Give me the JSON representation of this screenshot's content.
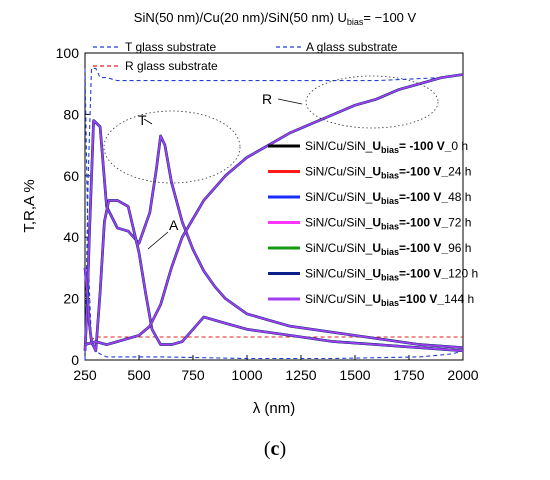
{
  "chart_data": {
    "type": "line",
    "title_main": "SiN(50 nm)/Cu(20 nm)/SiN(50 nm) U",
    "title_sub": "bias",
    "title_tail": "= −100 V",
    "xlabel": "λ (nm)",
    "ylabel": "T,R,A %",
    "xlim": [
      250,
      2000
    ],
    "ylim": [
      0,
      100
    ],
    "xticks": [
      "250",
      "500",
      "750",
      "1000",
      "1250",
      "1500",
      "1750",
      "2000"
    ],
    "yticks": [
      "0",
      "20",
      "40",
      "60",
      "80",
      "100"
    ],
    "grid": false,
    "substrate_legend": [
      {
        "label": "T glass substrate",
        "color": "#1f3fd6",
        "dash": "dashed"
      },
      {
        "label": "A glass substrate",
        "color": "#1f3fd6",
        "dash": "dashed"
      },
      {
        "label": "R glass substrate",
        "color": "#e02020",
        "dash": "dashed"
      }
    ],
    "sample_legend": [
      {
        "prefix": "SiN/Cu/SiN_",
        "sub": "bias",
        "mid": "= -100 V_",
        "suffix": "0 h",
        "color": "#000000"
      },
      {
        "prefix": "SiN/Cu/SiN_",
        "sub": "bias",
        "mid": "=-100 V_",
        "suffix": "24 h",
        "color": "#ff1a1a"
      },
      {
        "prefix": "SiN/Cu/SiN_",
        "sub": "bias",
        "mid": "=-100 V_",
        "suffix": "48 h",
        "color": "#1a2cff"
      },
      {
        "prefix": "SiN/Cu/SiN_",
        "sub": "bias",
        "mid": "=-100 V_",
        "suffix": "72 h",
        "color": "#ff33ff"
      },
      {
        "prefix": "SiN/Cu/SiN_",
        "sub": "bias",
        "mid": "=-100 V_",
        "suffix": "96 h",
        "color": "#169a16"
      },
      {
        "prefix": "SiN/Cu/SiN_",
        "sub": "bias",
        "mid": "=-100 V_",
        "suffix": "120 h",
        "color": "#0d1f8a"
      },
      {
        "prefix": "SiN/Cu/SiN_",
        "sub": "bias",
        "mid": "=100 V_",
        "suffix": "144 h",
        "color": "#a040f0"
      }
    ],
    "legend_u": "U",
    "annotations": [
      {
        "text": "T"
      },
      {
        "text": "A"
      },
      {
        "text": "R"
      }
    ],
    "series": [
      {
        "name": "T glass substrate",
        "color": "#1f3fd6",
        "x": [
          250,
          265,
          280,
          300,
          320,
          350,
          400,
          500,
          700,
          1000,
          1300,
          1600,
          1900,
          2000
        ],
        "y": [
          0,
          60,
          95,
          95,
          92,
          92,
          91,
          91,
          91,
          91,
          91,
          91,
          92,
          93
        ]
      },
      {
        "name": "A glass substrate",
        "color": "#1f3fd6",
        "x": [
          250,
          265,
          280,
          300,
          320,
          350,
          400,
          600,
          1000,
          1400,
          1800,
          1950,
          2000
        ],
        "y": [
          95,
          33,
          5,
          3,
          2,
          1,
          1,
          1,
          0.5,
          0.5,
          1,
          2,
          3
        ]
      },
      {
        "name": "R glass substrate",
        "color": "#e02020",
        "x": [
          250,
          300,
          350,
          400,
          600,
          800,
          1000,
          1500,
          2000
        ],
        "y": [
          5,
          7.5,
          7.5,
          7.5,
          7.5,
          7.5,
          7.5,
          7.5,
          7.5
        ]
      },
      {
        "name": "T (samples)",
        "color": "#a040f0",
        "x": [
          250,
          260,
          270,
          290,
          320,
          350,
          400,
          450,
          500,
          550,
          580,
          600,
          620,
          650,
          700,
          750,
          800,
          850,
          900,
          1000,
          1100,
          1200,
          1400,
          1600,
          1800,
          2000
        ],
        "y": [
          3,
          18,
          40,
          78,
          76,
          50,
          43,
          42,
          38,
          48,
          62,
          73,
          70,
          58,
          45,
          36,
          29,
          24,
          20,
          15,
          13,
          11,
          9,
          7,
          5,
          4
        ]
      },
      {
        "name": "A (samples)",
        "color": "#a040f0",
        "x": [
          250,
          260,
          270,
          280,
          300,
          320,
          340,
          360,
          400,
          450,
          500,
          530,
          560,
          600,
          650,
          700,
          750,
          800,
          900,
          1000,
          1200,
          1400,
          1600,
          1800,
          2000
        ],
        "y": [
          30,
          22,
          12,
          6,
          3,
          22,
          45,
          52,
          52,
          50,
          35,
          22,
          10,
          5,
          5,
          6,
          10,
          14,
          12,
          10,
          8,
          6,
          5,
          4,
          3
        ]
      },
      {
        "name": "R (samples)",
        "color": "#a040f0",
        "x": [
          250,
          300,
          350,
          400,
          450,
          500,
          550,
          600,
          650,
          700,
          800,
          900,
          1000,
          1100,
          1200,
          1300,
          1400,
          1500,
          1600,
          1700,
          1800,
          1900,
          2000
        ],
        "y": [
          5,
          6,
          5,
          6,
          7,
          8,
          11,
          18,
          30,
          40,
          52,
          60,
          66,
          70,
          74,
          77,
          80,
          83,
          85,
          88,
          90,
          92,
          93
        ]
      }
    ]
  }
}
